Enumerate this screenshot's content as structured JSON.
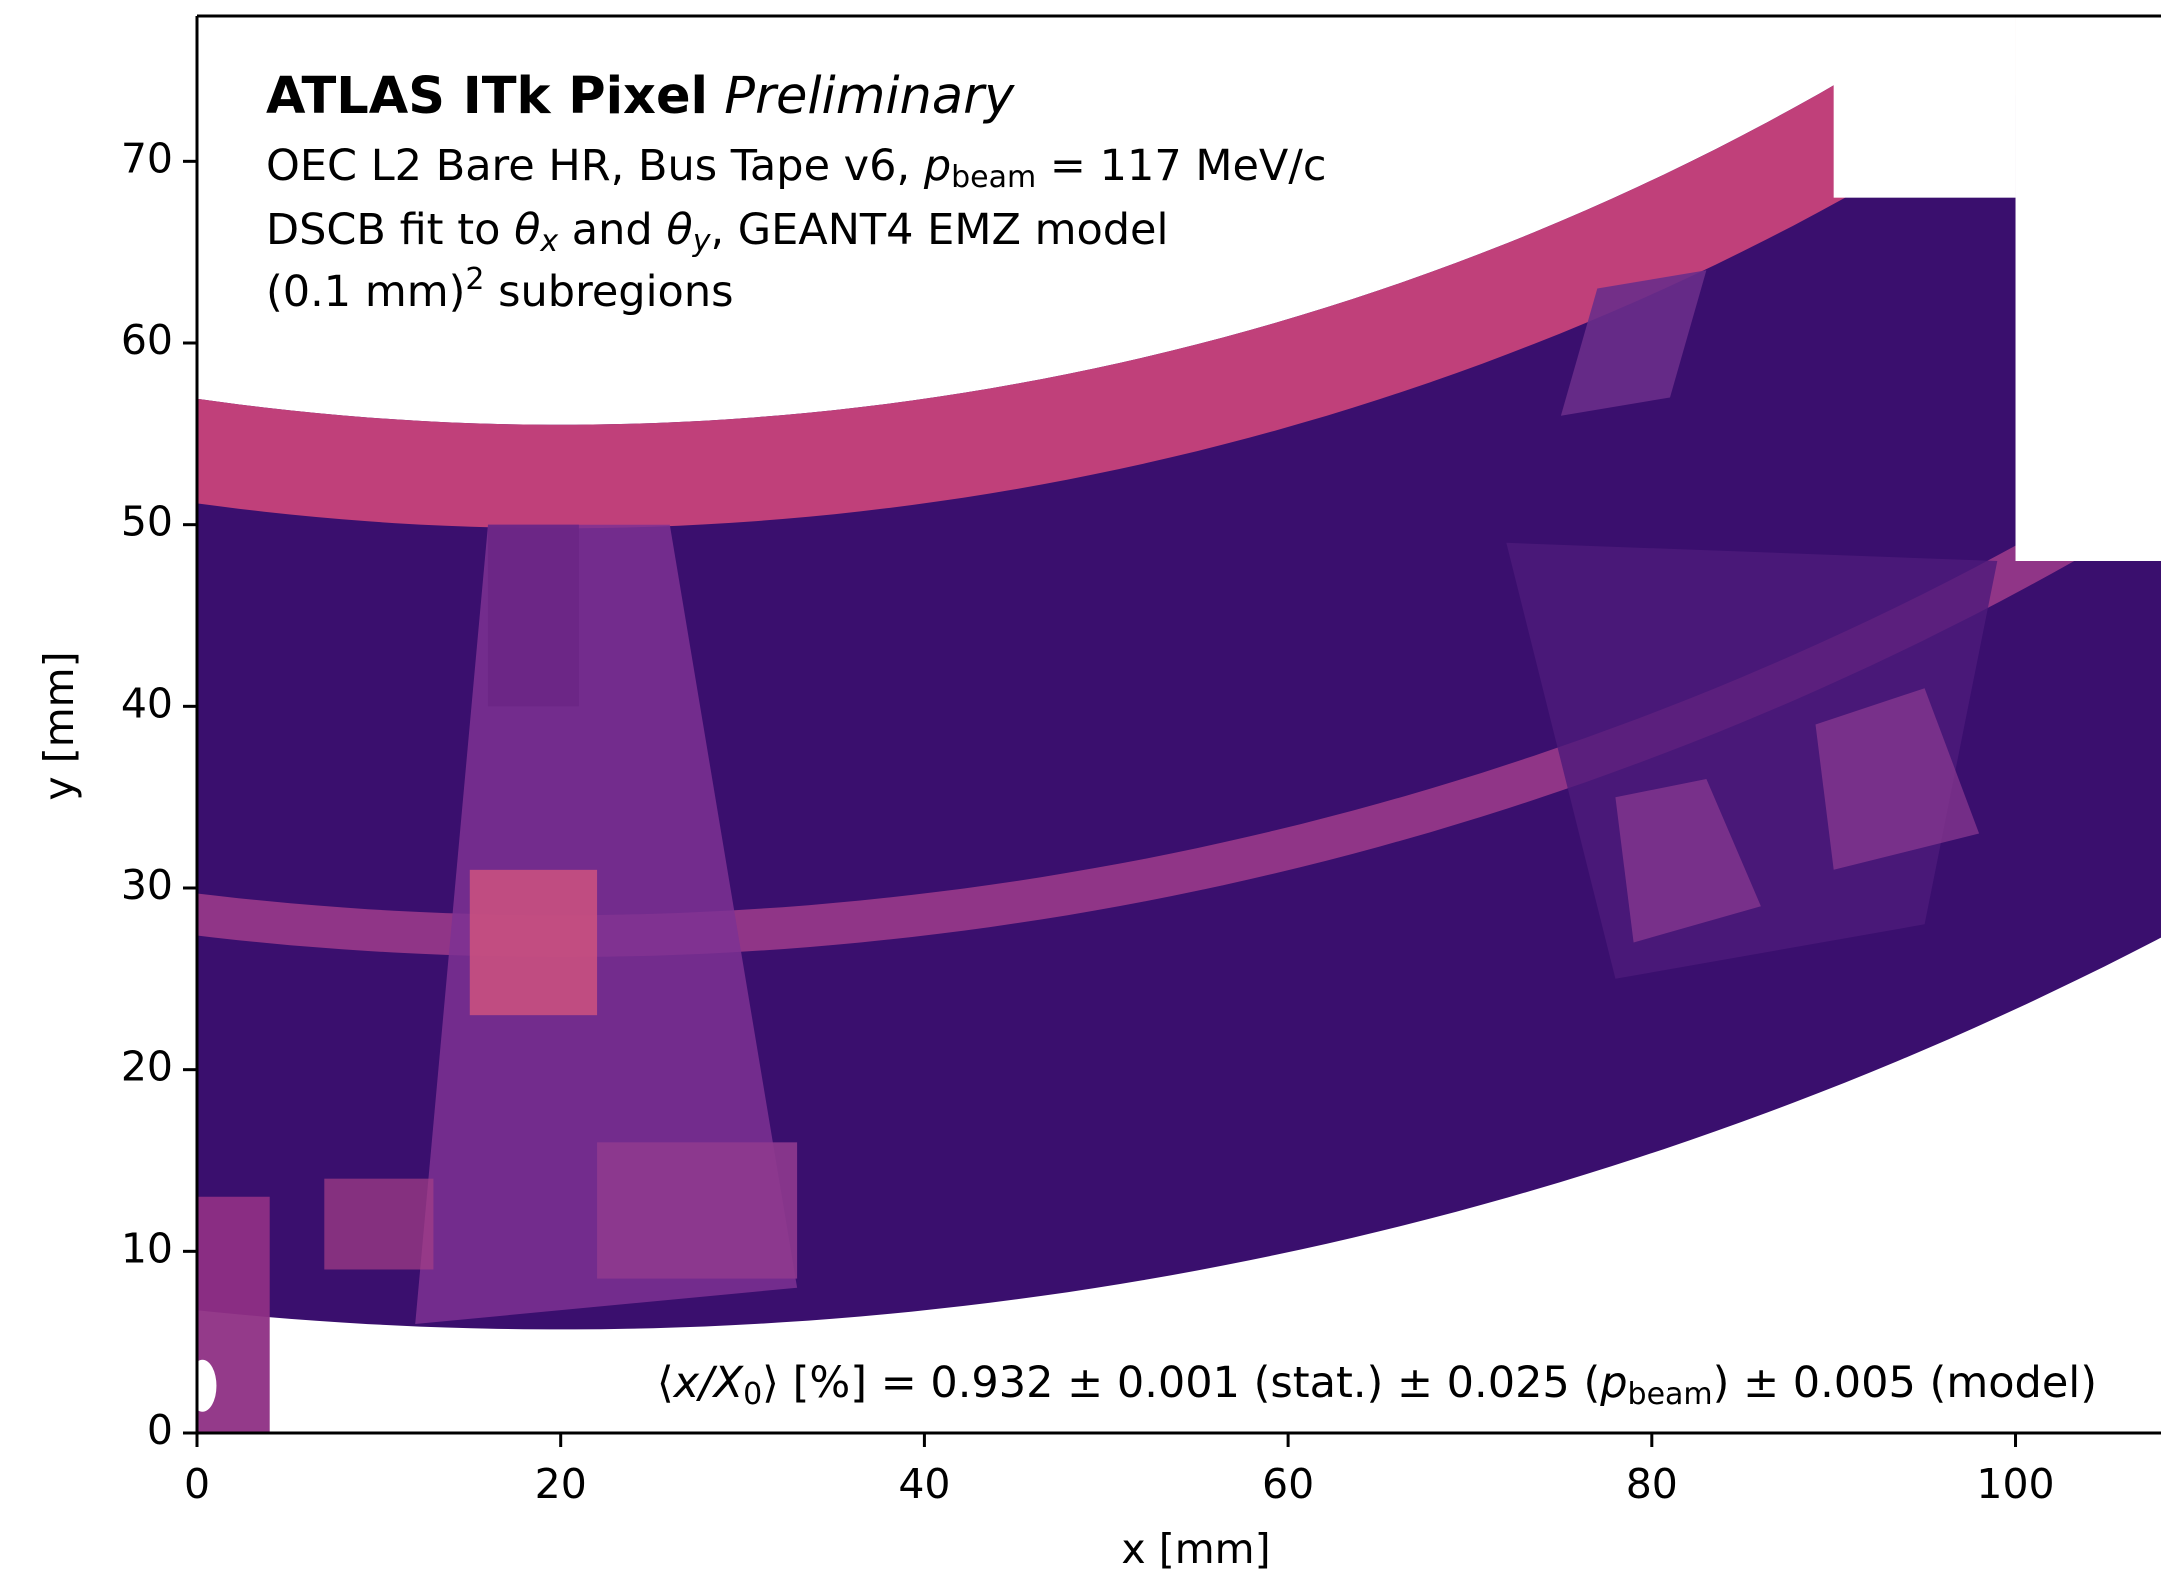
{
  "chart_data": {
    "type": "image",
    "title": "ATLAS ITk Pixel",
    "subtitle": "Preliminary",
    "annotations": [
      [
        "OEC L2 Bare HR, Bus Tape v6, ",
        "p",
        "beam",
        " = 117 MeV/c"
      ],
      [
        "DSCB fit to ",
        "θ",
        "x",
        " and ",
        "θ",
        "y",
        ", GEANT4 EMZ model"
      ],
      [
        "(0.1 mm)",
        "2",
        " subregions"
      ]
    ],
    "result": [
      "⟨",
      "x/X",
      "0",
      "⟩ [%] = 0.932 ± 0.001 (stat.) ± 0.025 (",
      "p",
      "beam",
      ") ± 0.005 (model)"
    ],
    "xlabel": "x [mm]",
    "ylabel": "y [mm]",
    "xlim": [
      0,
      108
    ],
    "ylim": [
      0,
      78
    ],
    "xticks": [
      0,
      20,
      40,
      60,
      80,
      100
    ],
    "yticks": [
      0,
      10,
      20,
      30,
      40,
      50,
      60,
      70
    ]
  }
}
